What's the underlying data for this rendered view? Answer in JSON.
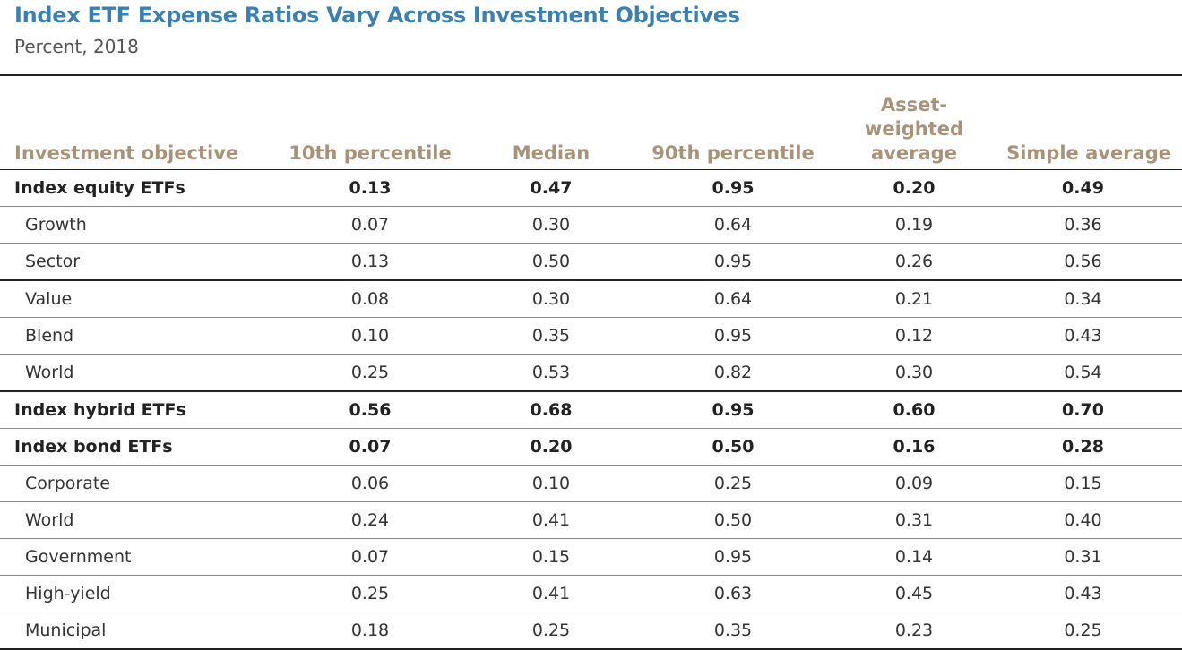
{
  "title": "Index ETF Expense Ratios Vary Across Investment Objectives",
  "subtitle": "Percent, 2018",
  "colors": {
    "title": "#3c7fb1",
    "header_text": "#a89378",
    "rule": "#222222"
  },
  "chart_data": {
    "type": "table",
    "columns": [
      "Investment objective",
      "10th percentile",
      "Median",
      "90th percentile",
      "Asset-weighted average",
      "Simple average"
    ],
    "rows": [
      {
        "label": "Index equity ETFs",
        "group": true,
        "values": [
          "0.13",
          "0.47",
          "0.95",
          "0.20",
          "0.49"
        ]
      },
      {
        "label": "Growth",
        "group": false,
        "values": [
          "0.07",
          "0.30",
          "0.64",
          "0.19",
          "0.36"
        ]
      },
      {
        "label": "Sector",
        "group": false,
        "values": [
          "0.13",
          "0.50",
          "0.95",
          "0.26",
          "0.56"
        ]
      },
      {
        "label": "Value",
        "group": false,
        "values": [
          "0.08",
          "0.30",
          "0.64",
          "0.21",
          "0.34"
        ]
      },
      {
        "label": "Blend",
        "group": false,
        "values": [
          "0.10",
          "0.35",
          "0.95",
          "0.12",
          "0.43"
        ]
      },
      {
        "label": "World",
        "group": false,
        "values": [
          "0.25",
          "0.53",
          "0.82",
          "0.30",
          "0.54"
        ]
      },
      {
        "label": "Index hybrid ETFs",
        "group": true,
        "values": [
          "0.56",
          "0.68",
          "0.95",
          "0.60",
          "0.70"
        ]
      },
      {
        "label": "Index bond ETFs",
        "group": true,
        "values": [
          "0.07",
          "0.20",
          "0.50",
          "0.16",
          "0.28"
        ]
      },
      {
        "label": "Corporate",
        "group": false,
        "values": [
          "0.06",
          "0.10",
          "0.25",
          "0.09",
          "0.15"
        ]
      },
      {
        "label": "World",
        "group": false,
        "values": [
          "0.24",
          "0.41",
          "0.50",
          "0.31",
          "0.40"
        ]
      },
      {
        "label": "Government",
        "group": false,
        "values": [
          "0.07",
          "0.15",
          "0.95",
          "0.14",
          "0.31"
        ]
      },
      {
        "label": "High-yield",
        "group": false,
        "values": [
          "0.25",
          "0.41",
          "0.63",
          "0.45",
          "0.43"
        ]
      },
      {
        "label": "Municipal",
        "group": false,
        "values": [
          "0.18",
          "0.25",
          "0.35",
          "0.23",
          "0.25"
        ]
      }
    ]
  }
}
